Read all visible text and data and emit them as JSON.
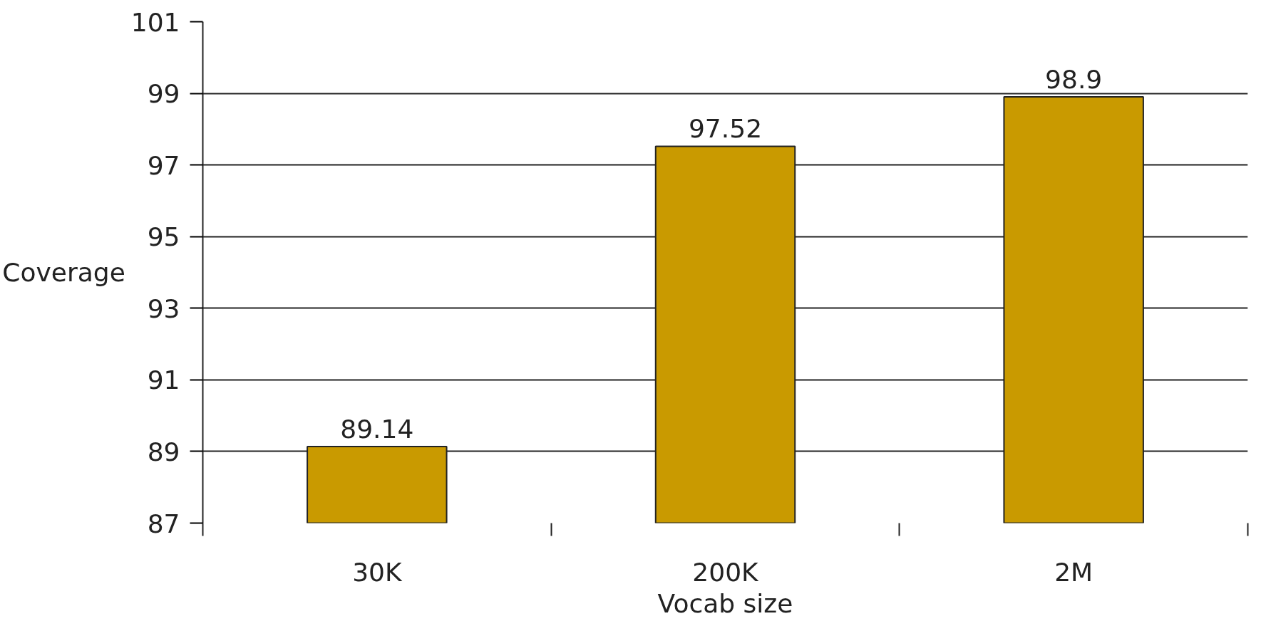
{
  "chart_data": {
    "type": "bar",
    "xlabel": "Vocab size",
    "ylabel": "Coverage",
    "categories": [
      "30K",
      "200K",
      "2M"
    ],
    "values": [
      89.14,
      97.52,
      98.9
    ],
    "color": "#c99a00",
    "ylim": [
      87,
      101
    ],
    "yticks": [
      87,
      89,
      91,
      93,
      95,
      97,
      99,
      101
    ],
    "grid": "y",
    "data_labels": true
  }
}
